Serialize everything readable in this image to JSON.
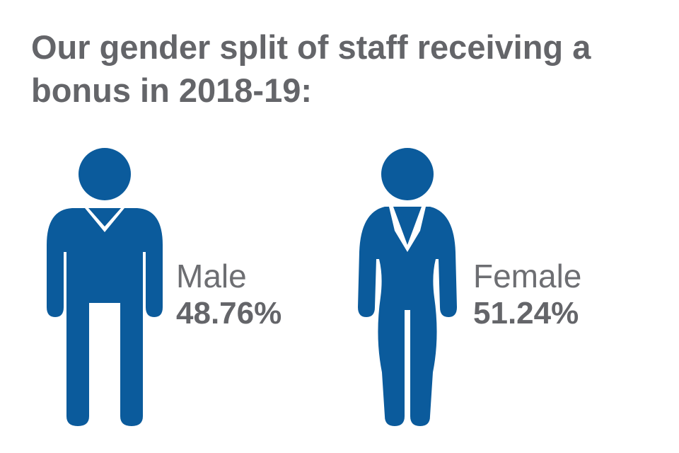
{
  "title": "Our gender split of staff receiving a bonus in 2018-19:",
  "colors": {
    "figure": "#0b5b9c",
    "text": "#646569"
  },
  "groups": [
    {
      "label": "Male",
      "value": "48.76%",
      "icon": "male-figure-icon"
    },
    {
      "label": "Female",
      "value": "51.24%",
      "icon": "female-figure-icon"
    }
  ]
}
